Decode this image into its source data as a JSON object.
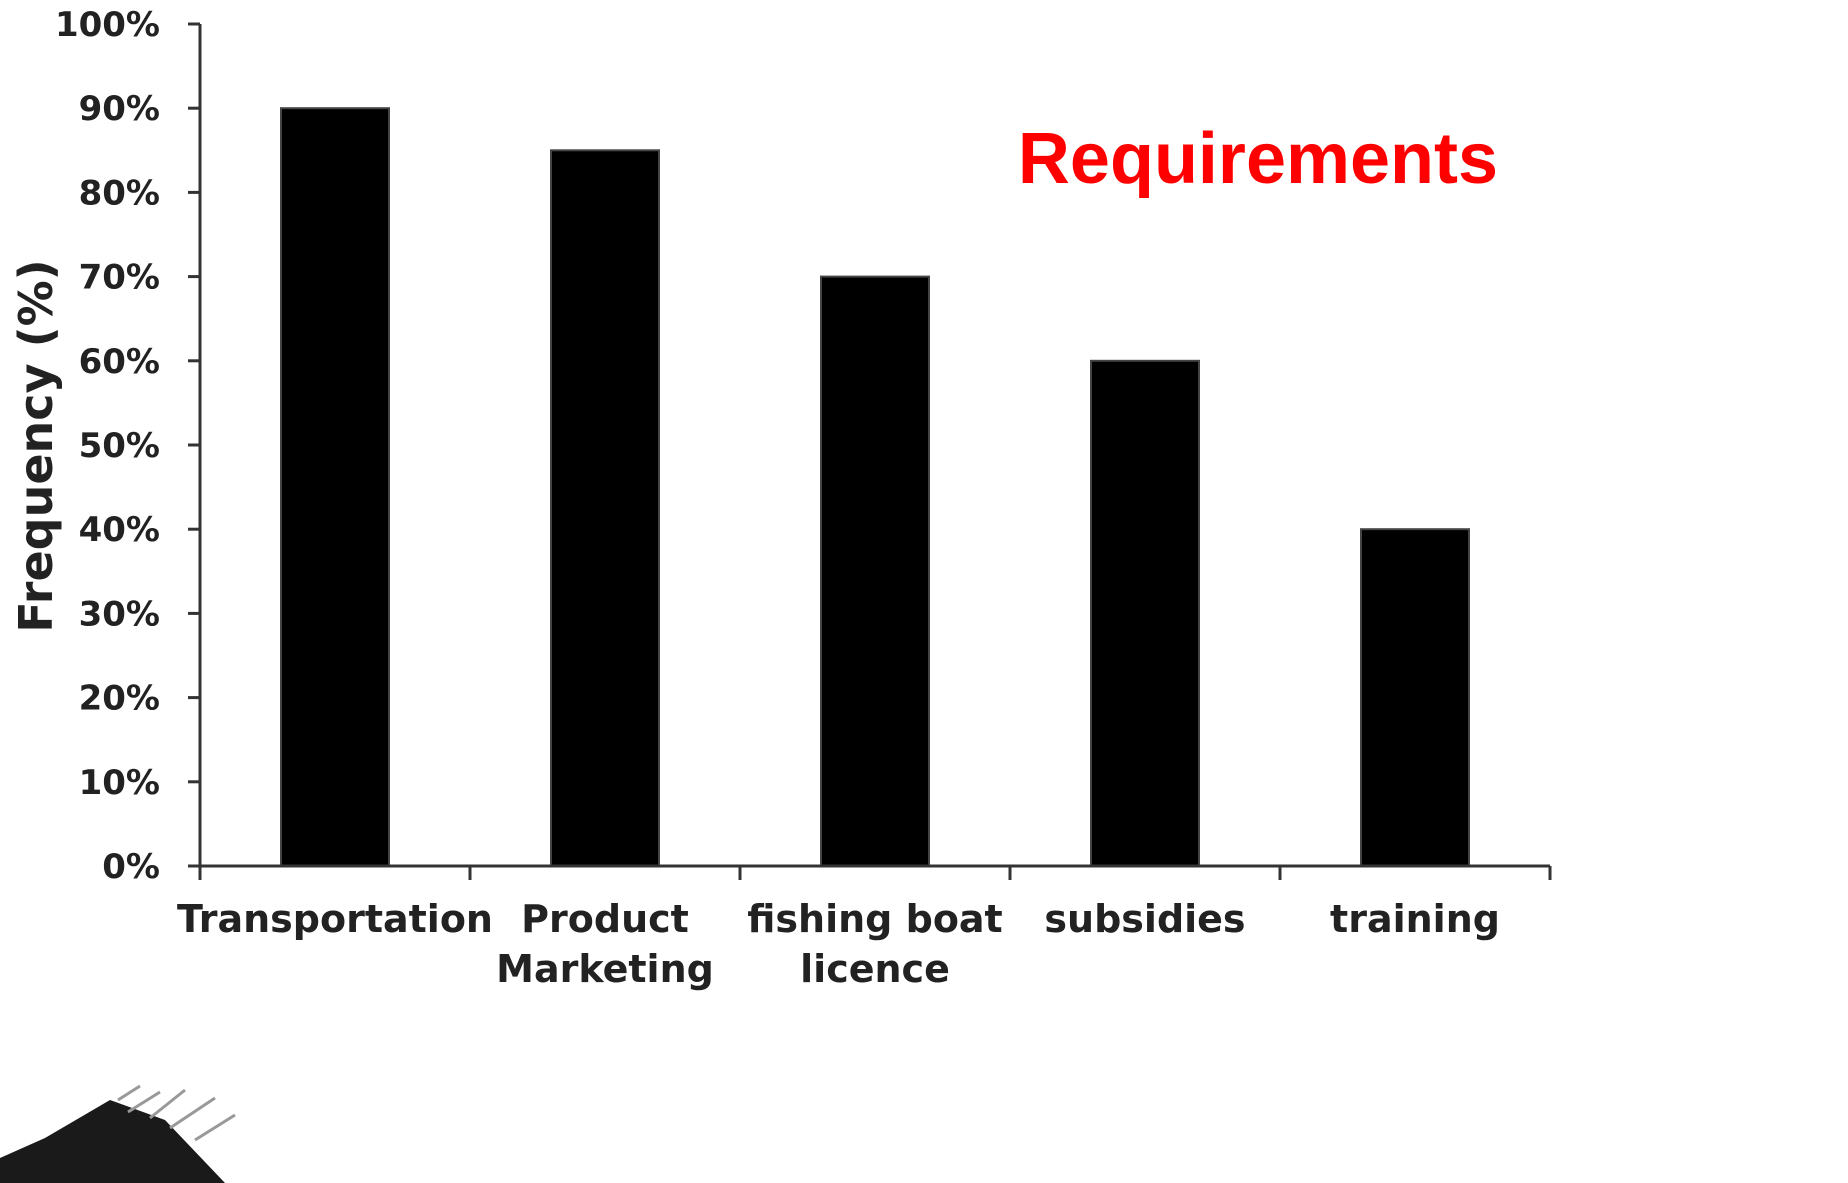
{
  "chart_data": {
    "type": "bar",
    "categories": [
      [
        "Transportation"
      ],
      [
        "Product",
        "Marketing"
      ],
      [
        "fishing boat",
        "licence"
      ],
      [
        "subsidies"
      ],
      [
        "training"
      ]
    ],
    "values": [
      90,
      85,
      70,
      60,
      40
    ],
    "ylabel": "Frequency (%)",
    "ylim": [
      0,
      100
    ],
    "yticks": [
      "0%",
      "10%",
      "20%",
      "30%",
      "40%",
      "50%",
      "60%",
      "70%",
      "80%",
      "90%",
      "100%"
    ],
    "annotation": "Requirements",
    "colors": {
      "bar": "#000000",
      "annotation": "#ff0000",
      "axis": "#333333"
    },
    "grid": false
  }
}
